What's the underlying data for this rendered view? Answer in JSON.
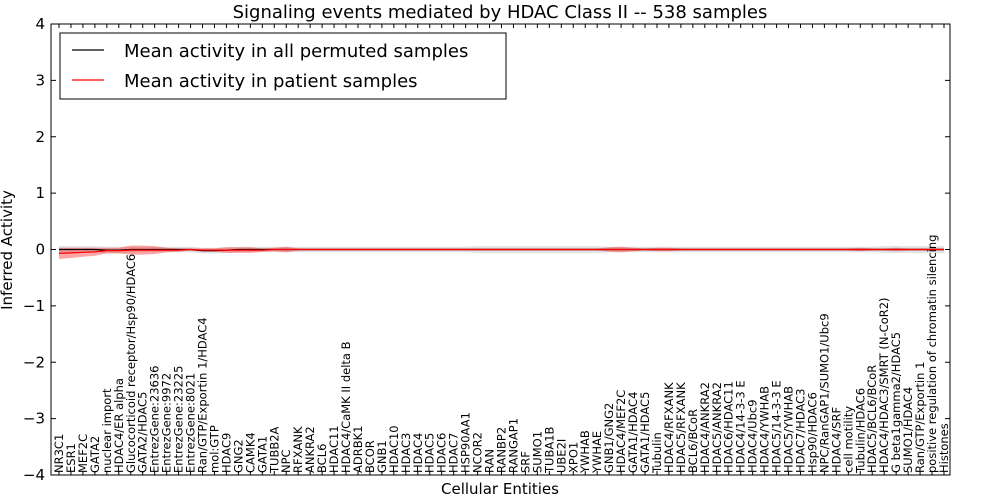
{
  "chart_data": {
    "type": "line",
    "title": "Signaling events mediated by HDAC Class II -- 538 samples",
    "xlabel": "Cellular Entities",
    "ylabel": "Inferred Activity",
    "ylim": [
      -4,
      4
    ],
    "yticks": [
      -4,
      -3,
      -2,
      -1,
      0,
      1,
      2,
      3,
      4
    ],
    "grid": false,
    "legend": {
      "position": "top-left",
      "entries": [
        {
          "label": "Mean activity in all permuted samples",
          "color": "#000000"
        },
        {
          "label": "Mean activity in patient samples",
          "color": "#ff0000"
        }
      ]
    },
    "categories": [
      "NR3C1",
      "ESR1",
      "MEF2C",
      "GATA2",
      "nuclear import",
      "HDAC4/ER alpha",
      "Glucocorticoid receptor/Hsp90/HDAC6",
      "GATA2/HDAC5",
      "EntrezGene:23636",
      "EntrezGene:9972",
      "EntrezGene:23225",
      "EntrezGene:8021",
      "Ran/GTP/Exportin 1/HDAC4",
      "mol:GTP",
      "HDAC9",
      "GNG2",
      "CAMK4",
      "GATA1",
      "TUBB2A",
      "NPC",
      "RFXANK",
      "ANKRA2",
      "BCL6",
      "HDAC11",
      "HDAC4/CaMK II delta B",
      "ADRBK1",
      "BCOR",
      "GNB1",
      "HDAC10",
      "HDAC3",
      "HDAC4",
      "HDAC5",
      "HDAC6",
      "HDAC7",
      "HSP90AA1",
      "NCOR2",
      "RAN",
      "RANBP2",
      "RANGAP1",
      "SRF",
      "SUMO1",
      "TUBA1B",
      "UBE2I",
      "XPO1",
      "YWHAB",
      "YWHAE",
      "GNB1/GNG2",
      "HDAC4/MEF2C",
      "GATA1/HDAC4",
      "GATA1/HDAC5",
      "Tubulin",
      "HDAC4/RFXANK",
      "HDAC5/RFXANK",
      "BCL6/BCoR",
      "HDAC4/ANKRA2",
      "HDAC5/ANKRA2",
      "HDAC6/HDAC11",
      "HDAC4/14-3-3 E",
      "HDAC4/Ubc9",
      "HDAC4/YWHAB",
      "HDAC5/14-3-3 E",
      "HDAC5/YWHAB",
      "HDAC7/HDAC3",
      "Hsp90/HDAC6",
      "NPC/RanGAP1/SUMO1/Ubc9",
      "HDAC4/SRF",
      "cell motility",
      "Tubulin/HDAC6",
      "HDAC5/BCL6/BCoR",
      "HDAC4/HDAC3/SMRT (N-CoR2)",
      "G beta1gamma2/HDAC5",
      "SUMO1/HDAC4",
      "Ran/GTP/Exportin 1",
      "positive regulation of chromatin silencing",
      "Histones"
    ],
    "series": [
      {
        "name": "Mean activity in all permuted samples",
        "color": "#000000",
        "values": [
          0,
          0,
          0,
          0,
          -0.01,
          -0.01,
          0,
          0,
          0,
          0,
          0,
          0,
          -0.02,
          -0.02,
          -0.01,
          0,
          0,
          0,
          0,
          0,
          0,
          0,
          0,
          0,
          0,
          0,
          0,
          0,
          0,
          0,
          0,
          0,
          0,
          0,
          0,
          0,
          0,
          0,
          0,
          0,
          0,
          0,
          0,
          0,
          0,
          0,
          0,
          0,
          0,
          0,
          0,
          0,
          0,
          0,
          0,
          0,
          0,
          0,
          0,
          0,
          0,
          0,
          0,
          0,
          0,
          0,
          0,
          0,
          0,
          0,
          0,
          0,
          0,
          0,
          0
        ],
        "band_halfwidth": [
          0.06,
          0.06,
          0.06,
          0.06,
          0.06,
          0.06,
          0.05,
          0.05,
          0.05,
          0.05,
          0.05,
          0.05,
          0.05,
          0.05,
          0.05,
          0.05,
          0.05,
          0.05,
          0.05,
          0.05,
          0.05,
          0.05,
          0.05,
          0.05,
          0.05,
          0.05,
          0.05,
          0.05,
          0.05,
          0.05,
          0.05,
          0.05,
          0.05,
          0.05,
          0.05,
          0.06,
          0.06,
          0.06,
          0.06,
          0.06,
          0.06,
          0.06,
          0.06,
          0.06,
          0.06,
          0.06,
          0.05,
          0.05,
          0.05,
          0.05,
          0.05,
          0.05,
          0.05,
          0.05,
          0.05,
          0.05,
          0.05,
          0.05,
          0.05,
          0.05,
          0.05,
          0.05,
          0.05,
          0.05,
          0.05,
          0.05,
          0.05,
          0.05,
          0.05,
          0.06,
          0.06,
          0.06,
          0.06,
          0.06,
          0.06
        ]
      },
      {
        "name": "Mean activity in patient samples",
        "color": "#ff0000",
        "values": [
          -0.07,
          -0.06,
          -0.05,
          -0.04,
          -0.02,
          -0.02,
          -0.01,
          -0.01,
          -0.01,
          -0.01,
          -0.01,
          0,
          -0.01,
          -0.01,
          -0.01,
          -0.01,
          -0.01,
          -0.01,
          0,
          0,
          0,
          0,
          0,
          0,
          0,
          0,
          0,
          0,
          0,
          0,
          0,
          0,
          0,
          0,
          0,
          0,
          0,
          0,
          0,
          0,
          0,
          0,
          0,
          0,
          0,
          0,
          0,
          0,
          0,
          0,
          0,
          0,
          0,
          0,
          0,
          0,
          0,
          0,
          0,
          0,
          0,
          0,
          0,
          0,
          0,
          0,
          0,
          0,
          0,
          0,
          0,
          0,
          0,
          0,
          0
        ],
        "band_halfwidth": [
          0.1,
          0.09,
          0.08,
          0.07,
          0.05,
          0.05,
          0.08,
          0.08,
          0.07,
          0.04,
          0.03,
          0.02,
          0.03,
          0.03,
          0.05,
          0.05,
          0.05,
          0.03,
          0.03,
          0.05,
          0.02,
          0.02,
          0.02,
          0.02,
          0.02,
          0.02,
          0.02,
          0.02,
          0.02,
          0.02,
          0.02,
          0.02,
          0.02,
          0.02,
          0.02,
          0.02,
          0.02,
          0.02,
          0.02,
          0.02,
          0.02,
          0.02,
          0.02,
          0.02,
          0.02,
          0.02,
          0.04,
          0.05,
          0.03,
          0.02,
          0.03,
          0.03,
          0.02,
          0.02,
          0.02,
          0.02,
          0.02,
          0.02,
          0.02,
          0.02,
          0.02,
          0.02,
          0.02,
          0.02,
          0.02,
          0.02,
          0.02,
          0.03,
          0.02,
          0.02,
          0.03,
          0.02,
          0.02,
          0.02,
          0.02
        ]
      }
    ]
  }
}
